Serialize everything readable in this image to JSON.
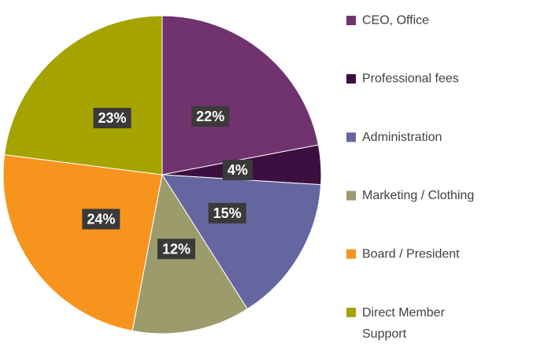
{
  "chart_data": {
    "type": "pie",
    "categories": [
      "CEO, Office",
      "Professional fees",
      "Administration",
      "Marketing / Clothing",
      "Board / President",
      "Direct Member Support"
    ],
    "values": [
      22,
      4,
      15,
      12,
      24,
      23
    ],
    "value_labels": [
      "22%",
      "4%",
      "15%",
      "12%",
      "24%",
      "23%"
    ],
    "colors": [
      "#70336e",
      "#3b1040",
      "#6566a0",
      "#9c9b6c",
      "#f7941d",
      "#a5a300"
    ],
    "legend": "right"
  }
}
